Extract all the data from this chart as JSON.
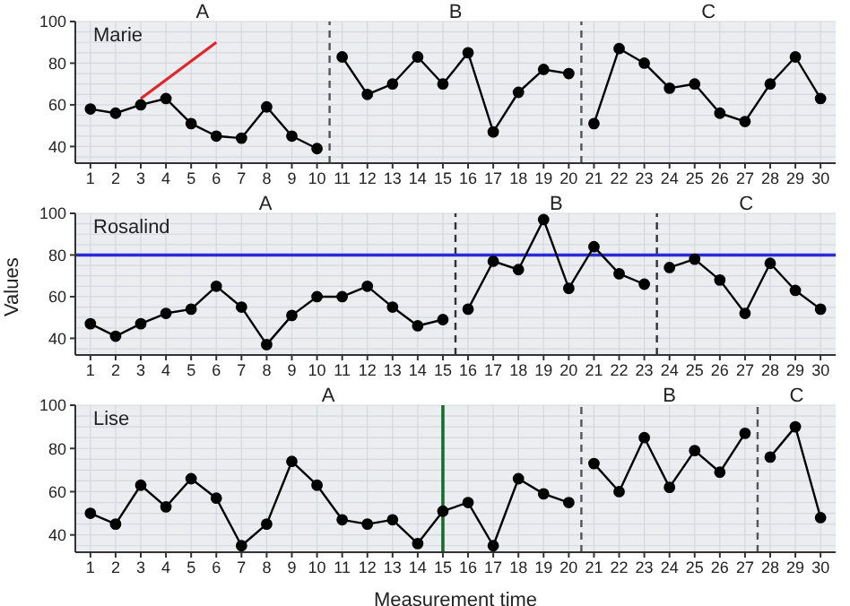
{
  "chart_data": [
    {
      "type": "line",
      "title": "Marie",
      "xlim": [
        0.4,
        30.6
      ],
      "xticks": [
        1,
        2,
        3,
        4,
        5,
        6,
        7,
        8,
        9,
        10,
        11,
        12,
        13,
        14,
        15,
        16,
        17,
        18,
        19,
        20,
        21,
        22,
        23,
        24,
        25,
        26,
        27,
        28,
        29,
        30
      ],
      "ylim": [
        32,
        100
      ],
      "yticks": [
        40,
        60,
        80,
        100
      ],
      "grid": true,
      "marker": "circle",
      "legend": false,
      "series": [
        {
          "color": "#000000",
          "x": [
            1,
            2,
            3,
            4,
            5,
            6,
            7,
            8,
            9,
            10
          ],
          "values": [
            58,
            56,
            60,
            63,
            51,
            45,
            44,
            59,
            45,
            39
          ]
        },
        {
          "color": "#000000",
          "x": [
            11,
            12,
            13,
            14,
            15,
            16,
            17,
            18,
            19,
            20
          ],
          "values": [
            83,
            65,
            70,
            83,
            70,
            85,
            47,
            66,
            77,
            75
          ]
        },
        {
          "color": "#000000",
          "x": [
            21,
            22,
            23,
            24,
            25,
            26,
            27,
            28,
            29,
            30
          ],
          "values": [
            51,
            87,
            80,
            68,
            70,
            56,
            52,
            70,
            83,
            63
          ]
        },
        {
          "color": "#e0262b",
          "x": [
            3,
            6
          ],
          "values": [
            63,
            90
          ],
          "marker": "none"
        }
      ],
      "ref_lines": [
        {
          "axis": "x",
          "value": 10.5,
          "color": "#555555",
          "line_style": "dashed"
        },
        {
          "axis": "x",
          "value": 20.5,
          "color": "#555555",
          "line_style": "dashed"
        }
      ],
      "annotations": [
        "A",
        "B",
        "C"
      ]
    },
    {
      "type": "line",
      "title": "Rosalind",
      "ylabel": "Values",
      "xlim": [
        0.4,
        30.6
      ],
      "xticks": [
        1,
        2,
        3,
        4,
        5,
        6,
        7,
        8,
        9,
        10,
        11,
        12,
        13,
        14,
        15,
        16,
        17,
        18,
        19,
        20,
        21,
        22,
        23,
        24,
        25,
        26,
        27,
        28,
        29,
        30
      ],
      "ylim": [
        32,
        100
      ],
      "yticks": [
        40,
        60,
        80,
        100
      ],
      "grid": true,
      "marker": "circle",
      "legend": false,
      "series": [
        {
          "color": "#000000",
          "x": [
            1,
            2,
            3,
            4,
            5,
            6,
            7,
            8,
            9,
            10,
            11,
            12,
            13,
            14,
            15
          ],
          "values": [
            47,
            41,
            47,
            52,
            54,
            65,
            55,
            37,
            51,
            60,
            60,
            65,
            55,
            46,
            49
          ]
        },
        {
          "color": "#000000",
          "x": [
            16,
            17,
            18,
            19,
            20,
            21,
            22,
            23
          ],
          "values": [
            54,
            77,
            73,
            97,
            64,
            84,
            71,
            66
          ]
        },
        {
          "color": "#000000",
          "x": [
            24,
            25,
            26,
            27,
            28,
            29,
            30
          ],
          "values": [
            74,
            78,
            68,
            52,
            76,
            63,
            54
          ]
        }
      ],
      "ref_lines": [
        {
          "axis": "x",
          "value": 15.5,
          "color": "#333333",
          "line_style": "dashed"
        },
        {
          "axis": "x",
          "value": 23.5,
          "color": "#333333",
          "line_style": "dashed"
        },
        {
          "axis": "y",
          "value": 80,
          "color": "#2b2bd6",
          "line_style": "solid"
        }
      ],
      "annotations": [
        "A",
        "B",
        "C"
      ]
    },
    {
      "type": "line",
      "title": "Lise",
      "xlabel": "Measurement time",
      "xlim": [
        0.4,
        30.6
      ],
      "xticks": [
        1,
        2,
        3,
        4,
        5,
        6,
        7,
        8,
        9,
        10,
        11,
        12,
        13,
        14,
        15,
        16,
        17,
        18,
        19,
        20,
        21,
        22,
        23,
        24,
        25,
        26,
        27,
        28,
        29,
        30
      ],
      "ylim": [
        32,
        100
      ],
      "yticks": [
        40,
        60,
        80,
        100
      ],
      "grid": true,
      "marker": "circle",
      "legend": false,
      "series": [
        {
          "color": "#000000",
          "x": [
            1,
            2,
            3,
            4,
            5,
            6,
            7,
            8,
            9,
            10,
            11,
            12,
            13,
            14,
            15,
            16,
            17,
            18,
            19,
            20
          ],
          "values": [
            50,
            45,
            63,
            53,
            66,
            57,
            35,
            45,
            74,
            63,
            47,
            45,
            47,
            36,
            51,
            55,
            35,
            66,
            59,
            55
          ]
        },
        {
          "color": "#000000",
          "x": [
            21,
            22,
            23,
            24,
            25,
            26,
            27
          ],
          "values": [
            73,
            60,
            85,
            62,
            79,
            69,
            87
          ]
        },
        {
          "color": "#000000",
          "x": [
            28,
            29,
            30
          ],
          "values": [
            76,
            90,
            48
          ]
        }
      ],
      "ref_lines": [
        {
          "axis": "x",
          "value": 15,
          "color": "#1b6b2a",
          "line_style": "solid"
        },
        {
          "axis": "x",
          "value": 20.5,
          "color": "#555555",
          "line_style": "dashed"
        },
        {
          "axis": "x",
          "value": 27.5,
          "color": "#555555",
          "line_style": "dashed"
        }
      ],
      "annotations": [
        "A",
        "B",
        "C"
      ]
    }
  ]
}
